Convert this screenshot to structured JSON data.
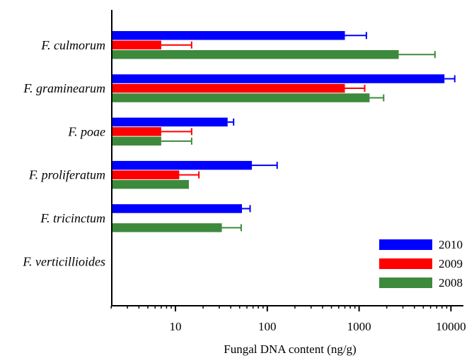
{
  "chart_data": {
    "type": "bar",
    "orientation": "horizontal",
    "x_scale": "log",
    "xlim": [
      2,
      15000
    ],
    "xlabel": "Fungal DNA content (ng/g)",
    "ylabel": "",
    "title": "",
    "grid": false,
    "legend_position": "bottom-right",
    "categories": [
      "F. culmorum",
      "F. graminearum",
      "F. poae",
      "F. proliferatum",
      "F. tricinctum",
      "F. verticillioides"
    ],
    "x_ticks": [
      {
        "value": 10,
        "label": "10"
      },
      {
        "value": 100,
        "label": "100"
      },
      {
        "value": 1000,
        "label": "1000"
      },
      {
        "value": 10000,
        "label": "10000"
      }
    ],
    "series": [
      {
        "name": "2010",
        "color": "#0000ff",
        "values": [
          700,
          8500,
          37,
          68,
          53,
          null
        ],
        "errors": [
          500,
          2500,
          6,
          60,
          12,
          null
        ]
      },
      {
        "name": "2009",
        "color": "#ff0000",
        "values": [
          7,
          700,
          7,
          11,
          null,
          null
        ],
        "errors": [
          8,
          450,
          8,
          7,
          null,
          null
        ]
      },
      {
        "name": "2008",
        "color": "#3d8a3d",
        "values": [
          2700,
          1300,
          7,
          14,
          32,
          null
        ],
        "errors": [
          4000,
          550,
          8,
          null,
          20,
          null
        ]
      }
    ]
  }
}
